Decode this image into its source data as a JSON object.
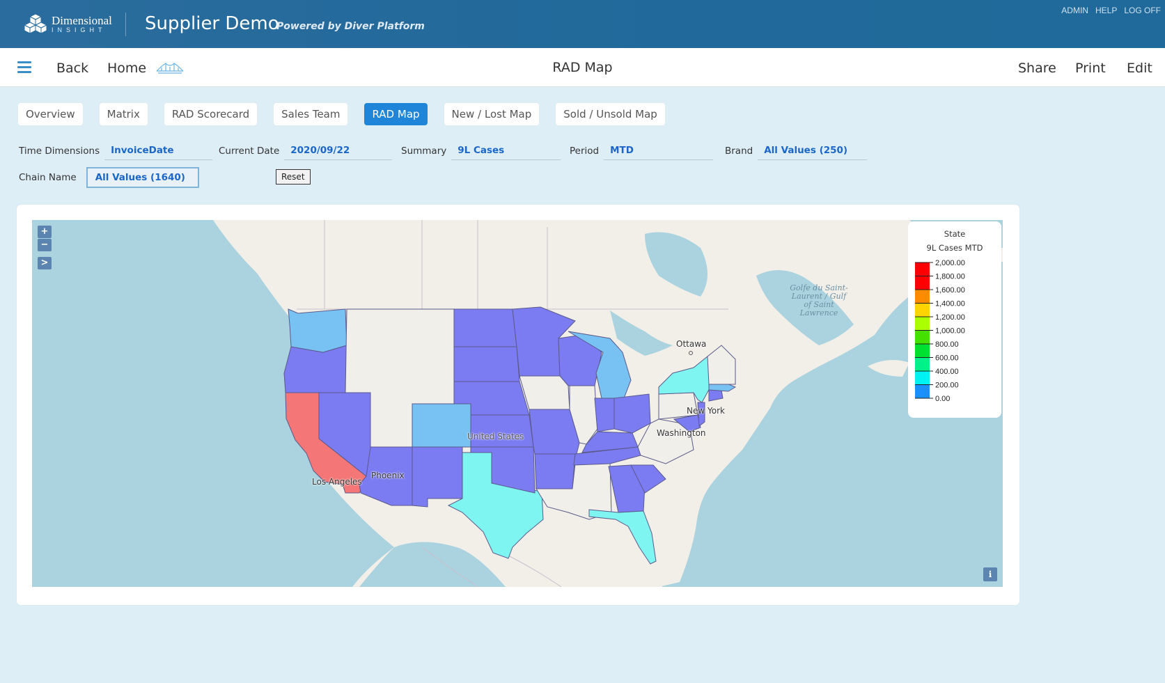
{
  "header": {
    "logo_line1": "Dimensional",
    "logo_line2": "INSIGHT",
    "app_title": "Supplier Demo",
    "app_subtitle": "Powered by Diver Platform",
    "links": [
      "ADMIN",
      "HELP",
      "LOG OFF"
    ],
    "colors": {
      "header_bg": "#20699a",
      "accent": "#1e85d8"
    }
  },
  "toolbar": {
    "back": "Back",
    "home": "Home",
    "page_title": "RAD Map",
    "share": "Share",
    "print": "Print",
    "edit": "Edit"
  },
  "tabs": [
    {
      "label": "Overview",
      "active": false
    },
    {
      "label": "Matrix",
      "active": false
    },
    {
      "label": "RAD Scorecard",
      "active": false
    },
    {
      "label": "Sales Team",
      "active": false
    },
    {
      "label": "RAD Map",
      "active": true
    },
    {
      "label": "New / Lost Map",
      "active": false
    },
    {
      "label": "Sold / Unsold Map",
      "active": false
    }
  ],
  "filters": {
    "time_dimensions": {
      "label": "Time Dimensions",
      "value": "InvoiceDate"
    },
    "current_date": {
      "label": "Current Date",
      "value": "2020/09/22"
    },
    "summary": {
      "label": "Summary",
      "value": "9L Cases"
    },
    "period": {
      "label": "Period",
      "value": "MTD"
    },
    "brand": {
      "label": "Brand",
      "value": "All Values (250)"
    },
    "chain_name": {
      "label": "Chain Name",
      "value": "All Values (1640)"
    },
    "reset_label": "Reset"
  },
  "map": {
    "zoom_in": "+",
    "zoom_out": "−",
    "expand": ">",
    "info": "i",
    "cities": [
      "Ottawa",
      "New York",
      "Washington",
      "Los Angeles",
      "Phoenix",
      "United States"
    ],
    "water_label": "Golfe du Saint-Laurent / Gulf of Saint Lawrence",
    "legend": {
      "title": "State",
      "subtitle": "9L Cases MTD",
      "ticks": [
        "2,000.00",
        "1,800.00",
        "1,600.00",
        "1,400.00",
        "1,200.00",
        "1,000.00",
        "800.00",
        "600.00",
        "400.00",
        "200.00",
        "0.00"
      ],
      "colors": [
        "#ff0000",
        "#ff0000",
        "#ff8c00",
        "#ffd400",
        "#aaff00",
        "#44e000",
        "#00e030",
        "#00f08a",
        "#00f2f2",
        "#1a90ff"
      ]
    },
    "state_colors": {
      "high": "#f47676",
      "mid_blue": "#7b7bf2",
      "light_blue": "#77c1f3",
      "cyan": "#7ff5f2",
      "none": "#f1efea"
    }
  }
}
